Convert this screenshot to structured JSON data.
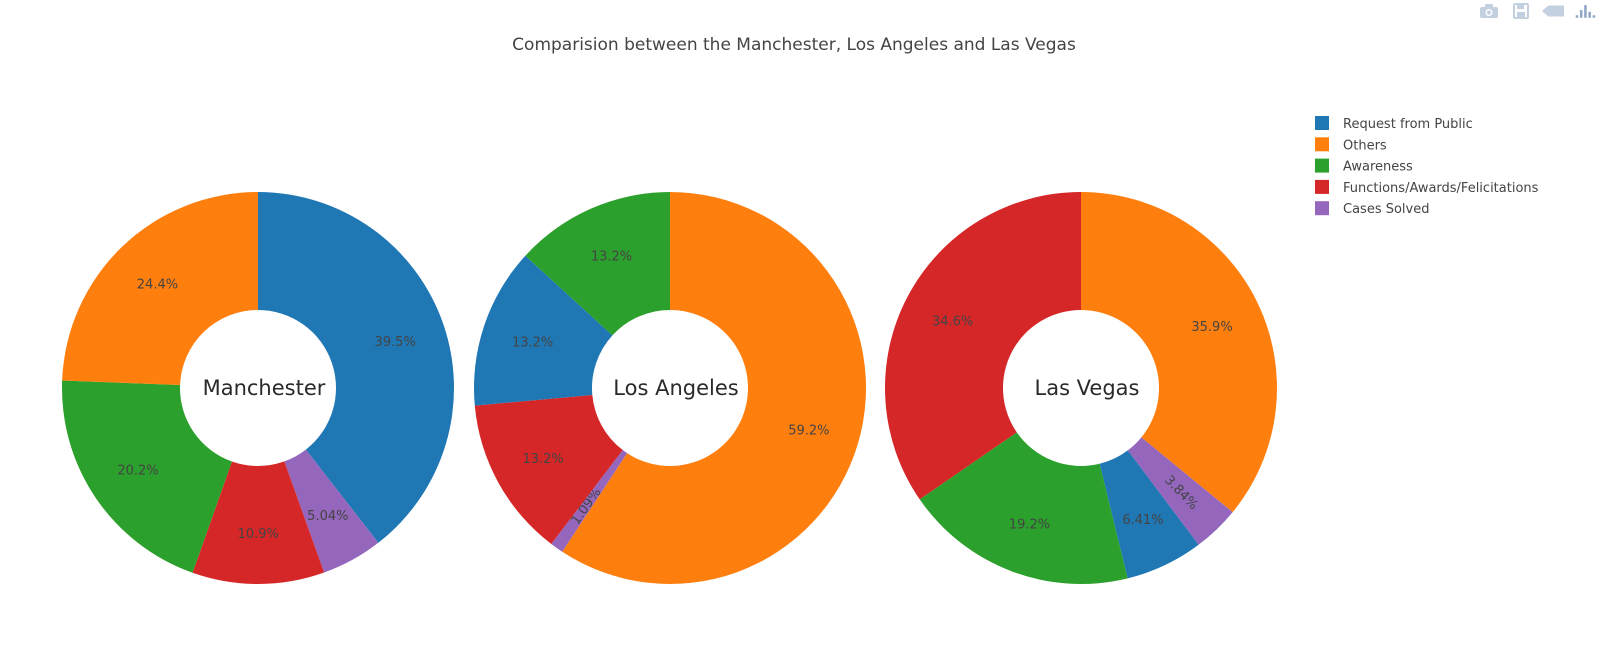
{
  "chart_data": {
    "type": "pie",
    "hole": true,
    "title": "Comparision between the Manchester, Los Angeles and Las Vegas",
    "legend": {
      "placement": "top-right",
      "entries": [
        {
          "name": "Request from Public",
          "color": "#1f77b4"
        },
        {
          "name": "Others",
          "color": "#ff7f0e"
        },
        {
          "name": "Awareness",
          "color": "#2ca02c"
        },
        {
          "name": "Functions/Awards/Felicitations",
          "color": "#d62728"
        },
        {
          "name": "Cases Solved",
          "color": "#9467bd"
        }
      ]
    },
    "pies": [
      {
        "label": "Manchester",
        "slices": [
          {
            "category": "Request from Public",
            "value": 39.5,
            "text": "39.5%"
          },
          {
            "category": "Cases Solved",
            "value": 5.04,
            "text": "5.04%"
          },
          {
            "category": "Functions/Awards/Felicitations",
            "value": 10.9,
            "text": "10.9%"
          },
          {
            "category": "Awareness",
            "value": 20.2,
            "text": "20.2%"
          },
          {
            "category": "Others",
            "value": 24.4,
            "text": "24.4%"
          }
        ]
      },
      {
        "label": "Los Angeles",
        "slices": [
          {
            "category": "Others",
            "value": 59.2,
            "text": "59.2%"
          },
          {
            "category": "Cases Solved",
            "value": 1.09,
            "text": "1.09%"
          },
          {
            "category": "Functions/Awards/Felicitations",
            "value": 13.2,
            "text": "13.2%"
          },
          {
            "category": "Request from Public",
            "value": 13.2,
            "text": "13.2%"
          },
          {
            "category": "Awareness",
            "value": 13.2,
            "text": "13.2%"
          }
        ]
      },
      {
        "label": "Las Vegas",
        "slices": [
          {
            "category": "Others",
            "value": 35.9,
            "text": "35.9%"
          },
          {
            "category": "Cases Solved",
            "value": 3.84,
            "text": "3.84%"
          },
          {
            "category": "Request from Public",
            "value": 6.41,
            "text": "6.41%"
          },
          {
            "category": "Awareness",
            "value": 19.2,
            "text": "19.2%"
          },
          {
            "category": "Functions/Awards/Felicitations",
            "value": 34.6,
            "text": "34.6%"
          }
        ]
      }
    ]
  },
  "toolbar": {
    "icons": [
      "camera-icon",
      "save-icon",
      "pan-icon",
      "plotly-logo-icon"
    ],
    "icon_color": "#b8c8dc"
  }
}
